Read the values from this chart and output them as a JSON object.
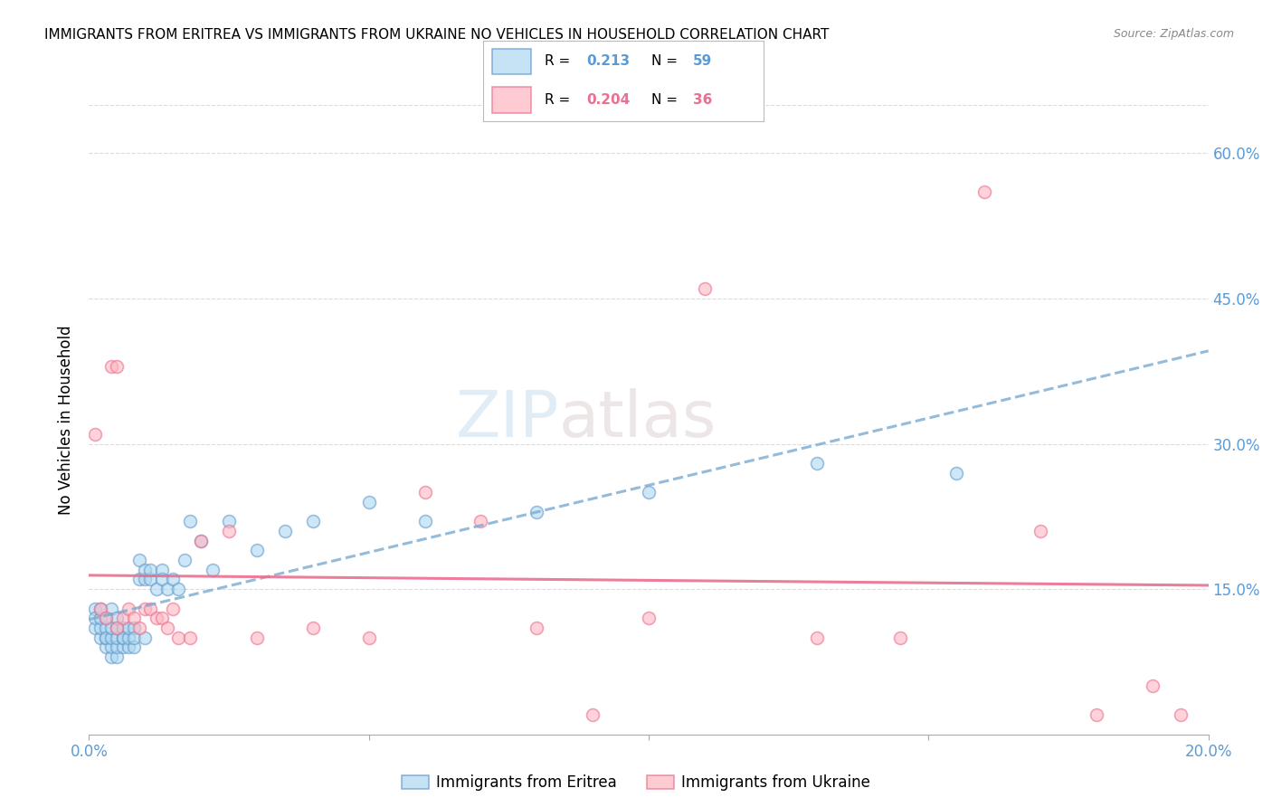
{
  "title": "IMMIGRANTS FROM ERITREA VS IMMIGRANTS FROM UKRAINE NO VEHICLES IN HOUSEHOLD CORRELATION CHART",
  "source": "Source: ZipAtlas.com",
  "ylabel": "No Vehicles in Household",
  "xlim": [
    0.0,
    0.2
  ],
  "ylim": [
    0.0,
    0.65
  ],
  "yticks_right": [
    0.15,
    0.3,
    0.45,
    0.6
  ],
  "ytick_right_labels": [
    "15.0%",
    "30.0%",
    "45.0%",
    "60.0%"
  ],
  "watermark_zip": "ZIP",
  "watermark_atlas": "atlas",
  "legend_eritrea_R": "0.213",
  "legend_eritrea_N": "59",
  "legend_ukraine_R": "0.204",
  "legend_ukraine_N": "36",
  "color_eritrea_fill": "#ADD8F0",
  "color_eritrea_edge": "#6699CC",
  "color_eritrea_line": "#7AAAD0",
  "color_ukraine_fill": "#FFB6C1",
  "color_ukraine_edge": "#E87090",
  "color_ukraine_line": "#E87090",
  "color_axis_ticks": "#5B9BD5",
  "color_grid": "#CCCCCC",
  "background_color": "#FFFFFF",
  "eritrea_x": [
    0.001,
    0.001,
    0.001,
    0.002,
    0.002,
    0.002,
    0.002,
    0.003,
    0.003,
    0.003,
    0.003,
    0.003,
    0.004,
    0.004,
    0.004,
    0.004,
    0.004,
    0.005,
    0.005,
    0.005,
    0.005,
    0.005,
    0.006,
    0.006,
    0.006,
    0.006,
    0.007,
    0.007,
    0.007,
    0.008,
    0.008,
    0.008,
    0.009,
    0.009,
    0.01,
    0.01,
    0.01,
    0.011,
    0.011,
    0.012,
    0.013,
    0.013,
    0.014,
    0.015,
    0.016,
    0.017,
    0.018,
    0.02,
    0.022,
    0.025,
    0.03,
    0.035,
    0.04,
    0.05,
    0.06,
    0.08,
    0.1,
    0.13,
    0.155
  ],
  "eritrea_y": [
    0.11,
    0.13,
    0.12,
    0.1,
    0.11,
    0.12,
    0.13,
    0.09,
    0.1,
    0.11,
    0.12,
    0.1,
    0.08,
    0.09,
    0.1,
    0.11,
    0.13,
    0.08,
    0.09,
    0.1,
    0.11,
    0.12,
    0.09,
    0.1,
    0.11,
    0.1,
    0.09,
    0.1,
    0.11,
    0.09,
    0.11,
    0.1,
    0.16,
    0.18,
    0.1,
    0.16,
    0.17,
    0.16,
    0.17,
    0.15,
    0.17,
    0.16,
    0.15,
    0.16,
    0.15,
    0.18,
    0.22,
    0.2,
    0.17,
    0.22,
    0.19,
    0.21,
    0.22,
    0.24,
    0.22,
    0.23,
    0.25,
    0.28,
    0.27
  ],
  "ukraine_x": [
    0.001,
    0.002,
    0.003,
    0.004,
    0.005,
    0.005,
    0.006,
    0.007,
    0.008,
    0.009,
    0.01,
    0.011,
    0.012,
    0.013,
    0.014,
    0.015,
    0.016,
    0.018,
    0.02,
    0.025,
    0.03,
    0.04,
    0.05,
    0.06,
    0.07,
    0.08,
    0.09,
    0.1,
    0.11,
    0.13,
    0.145,
    0.16,
    0.17,
    0.18,
    0.19,
    0.195
  ],
  "ukraine_y": [
    0.31,
    0.13,
    0.12,
    0.38,
    0.38,
    0.11,
    0.12,
    0.13,
    0.12,
    0.11,
    0.13,
    0.13,
    0.12,
    0.12,
    0.11,
    0.13,
    0.1,
    0.1,
    0.2,
    0.21,
    0.1,
    0.11,
    0.1,
    0.25,
    0.22,
    0.11,
    0.02,
    0.12,
    0.46,
    0.1,
    0.1,
    0.56,
    0.21,
    0.02,
    0.05,
    0.02
  ],
  "title_fontsize": 11,
  "marker_size": 100,
  "marker_alpha": 0.6,
  "marker_linewidth": 1.2
}
